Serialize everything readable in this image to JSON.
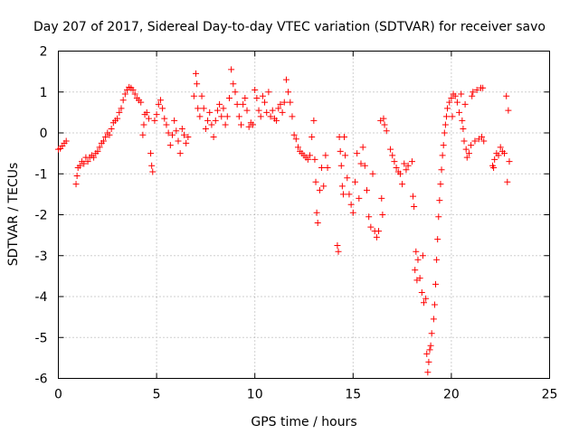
{
  "chart_data": {
    "type": "scatter",
    "title": "Day 207 of 2017, Sidereal Day-to-day VTEC variation (SDTVAR) for receiver savo",
    "xlabel": "GPS time / hours",
    "ylabel": "SDTVAR / TECUs",
    "xlim": [
      0,
      25
    ],
    "ylim": [
      -6,
      2
    ],
    "xticks": [
      0,
      5,
      10,
      15,
      20,
      25
    ],
    "yticks": [
      -6,
      -5,
      -4,
      -3,
      -2,
      -1,
      0,
      1,
      2
    ],
    "grid": true,
    "marker": "+",
    "color": "#ff0000",
    "series": [
      {
        "name": "SDTVAR",
        "points": [
          [
            0.0,
            -0.4
          ],
          [
            0.1,
            -0.38
          ],
          [
            0.2,
            -0.32
          ],
          [
            0.3,
            -0.25
          ],
          [
            0.4,
            -0.2
          ],
          [
            0.9,
            -1.25
          ],
          [
            0.95,
            -1.05
          ],
          [
            1.0,
            -0.85
          ],
          [
            1.1,
            -0.8
          ],
          [
            1.2,
            -0.7
          ],
          [
            1.3,
            -0.75
          ],
          [
            1.4,
            -0.6
          ],
          [
            1.5,
            -0.7
          ],
          [
            1.6,
            -0.6
          ],
          [
            1.7,
            -0.55
          ],
          [
            1.8,
            -0.6
          ],
          [
            1.9,
            -0.5
          ],
          [
            2.0,
            -0.45
          ],
          [
            2.1,
            -0.35
          ],
          [
            2.2,
            -0.25
          ],
          [
            2.3,
            -0.2
          ],
          [
            2.4,
            -0.1
          ],
          [
            2.5,
            0.0
          ],
          [
            2.6,
            -0.05
          ],
          [
            2.7,
            0.1
          ],
          [
            2.8,
            0.25
          ],
          [
            2.9,
            0.3
          ],
          [
            3.0,
            0.35
          ],
          [
            3.1,
            0.5
          ],
          [
            3.2,
            0.6
          ],
          [
            3.3,
            0.8
          ],
          [
            3.4,
            0.95
          ],
          [
            3.5,
            1.05
          ],
          [
            3.6,
            1.12
          ],
          [
            3.7,
            1.1
          ],
          [
            3.8,
            1.05
          ],
          [
            3.9,
            0.95
          ],
          [
            4.0,
            0.85
          ],
          [
            4.1,
            0.8
          ],
          [
            4.2,
            0.75
          ],
          [
            4.3,
            -0.05
          ],
          [
            4.35,
            0.2
          ],
          [
            4.4,
            0.45
          ],
          [
            4.5,
            0.5
          ],
          [
            4.6,
            0.35
          ],
          [
            4.7,
            -0.5
          ],
          [
            4.75,
            -0.8
          ],
          [
            4.8,
            -0.95
          ],
          [
            4.9,
            0.3
          ],
          [
            5.0,
            0.45
          ],
          [
            5.1,
            0.7
          ],
          [
            5.2,
            0.8
          ],
          [
            5.3,
            0.6
          ],
          [
            5.4,
            0.35
          ],
          [
            5.5,
            0.2
          ],
          [
            5.6,
            0.0
          ],
          [
            5.7,
            -0.3
          ],
          [
            5.8,
            -0.05
          ],
          [
            5.9,
            0.3
          ],
          [
            6.0,
            0.05
          ],
          [
            6.1,
            -0.2
          ],
          [
            6.2,
            -0.5
          ],
          [
            6.3,
            0.1
          ],
          [
            6.4,
            -0.05
          ],
          [
            6.5,
            -0.25
          ],
          [
            6.6,
            -0.1
          ],
          [
            6.9,
            0.9
          ],
          [
            7.0,
            1.45
          ],
          [
            7.05,
            1.2
          ],
          [
            7.1,
            0.6
          ],
          [
            7.2,
            0.4
          ],
          [
            7.3,
            0.9
          ],
          [
            7.4,
            0.6
          ],
          [
            7.5,
            0.1
          ],
          [
            7.6,
            0.3
          ],
          [
            7.7,
            0.5
          ],
          [
            7.8,
            0.2
          ],
          [
            7.9,
            -0.1
          ],
          [
            8.0,
            0.3
          ],
          [
            8.1,
            0.55
          ],
          [
            8.2,
            0.7
          ],
          [
            8.3,
            0.4
          ],
          [
            8.4,
            0.6
          ],
          [
            8.5,
            0.2
          ],
          [
            8.6,
            0.4
          ],
          [
            8.7,
            0.85
          ],
          [
            8.8,
            1.55
          ],
          [
            8.9,
            1.2
          ],
          [
            9.0,
            1.0
          ],
          [
            9.1,
            0.7
          ],
          [
            9.2,
            0.4
          ],
          [
            9.3,
            0.2
          ],
          [
            9.4,
            0.7
          ],
          [
            9.5,
            0.85
          ],
          [
            9.6,
            0.55
          ],
          [
            9.7,
            0.15
          ],
          [
            9.8,
            0.25
          ],
          [
            9.9,
            0.2
          ],
          [
            10.0,
            1.05
          ],
          [
            10.1,
            0.85
          ],
          [
            10.2,
            0.55
          ],
          [
            10.3,
            0.4
          ],
          [
            10.4,
            0.9
          ],
          [
            10.5,
            0.75
          ],
          [
            10.6,
            0.5
          ],
          [
            10.7,
            1.0
          ],
          [
            10.8,
            0.4
          ],
          [
            10.9,
            0.55
          ],
          [
            11.0,
            0.35
          ],
          [
            11.1,
            0.3
          ],
          [
            11.2,
            0.6
          ],
          [
            11.3,
            0.7
          ],
          [
            11.4,
            0.5
          ],
          [
            11.5,
            0.75
          ],
          [
            11.6,
            1.3
          ],
          [
            11.7,
            1.0
          ],
          [
            11.8,
            0.75
          ],
          [
            11.9,
            0.4
          ],
          [
            12.0,
            -0.05
          ],
          [
            12.1,
            -0.15
          ],
          [
            12.2,
            -0.35
          ],
          [
            12.3,
            -0.45
          ],
          [
            12.4,
            -0.5
          ],
          [
            12.5,
            -0.55
          ],
          [
            12.6,
            -0.6
          ],
          [
            12.7,
            -0.65
          ],
          [
            12.8,
            -0.55
          ],
          [
            12.9,
            -0.1
          ],
          [
            13.0,
            0.3
          ],
          [
            13.05,
            -0.65
          ],
          [
            13.1,
            -1.2
          ],
          [
            13.15,
            -1.95
          ],
          [
            13.2,
            -2.2
          ],
          [
            13.3,
            -1.4
          ],
          [
            13.4,
            -0.85
          ],
          [
            13.5,
            -1.3
          ],
          [
            13.6,
            -0.55
          ],
          [
            13.7,
            -0.85
          ],
          [
            14.2,
            -2.75
          ],
          [
            14.25,
            -2.9
          ],
          [
            14.3,
            -0.1
          ],
          [
            14.35,
            -0.45
          ],
          [
            14.4,
            -0.8
          ],
          [
            14.45,
            -1.3
          ],
          [
            14.5,
            -1.5
          ],
          [
            14.55,
            -0.1
          ],
          [
            14.6,
            -0.55
          ],
          [
            14.7,
            -1.1
          ],
          [
            14.8,
            -1.5
          ],
          [
            14.9,
            -1.75
          ],
          [
            15.0,
            -1.95
          ],
          [
            15.1,
            -1.2
          ],
          [
            15.2,
            -0.5
          ],
          [
            15.3,
            -1.6
          ],
          [
            15.4,
            -0.75
          ],
          [
            15.5,
            -0.35
          ],
          [
            15.6,
            -0.8
          ],
          [
            15.7,
            -1.4
          ],
          [
            15.8,
            -2.05
          ],
          [
            15.9,
            -2.3
          ],
          [
            16.0,
            -1.0
          ],
          [
            16.1,
            -2.4
          ],
          [
            16.2,
            -2.55
          ],
          [
            16.3,
            -2.4
          ],
          [
            16.4,
            0.3
          ],
          [
            16.45,
            -1.6
          ],
          [
            16.5,
            -2.0
          ],
          [
            16.55,
            0.35
          ],
          [
            16.6,
            0.2
          ],
          [
            16.7,
            0.05
          ],
          [
            16.9,
            -0.4
          ],
          [
            17.0,
            -0.55
          ],
          [
            17.1,
            -0.7
          ],
          [
            17.2,
            -0.85
          ],
          [
            17.3,
            -0.95
          ],
          [
            17.4,
            -1.0
          ],
          [
            17.5,
            -1.25
          ],
          [
            17.6,
            -0.75
          ],
          [
            17.7,
            -0.9
          ],
          [
            17.8,
            -0.8
          ],
          [
            18.0,
            -0.7
          ],
          [
            18.05,
            -1.55
          ],
          [
            18.1,
            -1.8
          ],
          [
            18.15,
            -3.35
          ],
          [
            18.2,
            -2.9
          ],
          [
            18.25,
            -3.6
          ],
          [
            18.3,
            -3.1
          ],
          [
            18.4,
            -3.55
          ],
          [
            18.5,
            -3.9
          ],
          [
            18.55,
            -3.0
          ],
          [
            18.6,
            -4.15
          ],
          [
            18.7,
            -4.05
          ],
          [
            18.75,
            -5.4
          ],
          [
            18.8,
            -5.85
          ],
          [
            18.85,
            -5.6
          ],
          [
            18.9,
            -5.3
          ],
          [
            18.95,
            -5.2
          ],
          [
            19.0,
            -4.9
          ],
          [
            19.1,
            -4.55
          ],
          [
            19.15,
            -4.2
          ],
          [
            19.2,
            -3.7
          ],
          [
            19.25,
            -3.1
          ],
          [
            19.3,
            -2.6
          ],
          [
            19.35,
            -2.05
          ],
          [
            19.4,
            -1.65
          ],
          [
            19.45,
            -1.25
          ],
          [
            19.5,
            -0.9
          ],
          [
            19.55,
            -0.55
          ],
          [
            19.6,
            -0.3
          ],
          [
            19.65,
            0.0
          ],
          [
            19.7,
            0.2
          ],
          [
            19.75,
            0.4
          ],
          [
            19.8,
            0.6
          ],
          [
            19.9,
            0.75
          ],
          [
            20.0,
            0.85
          ],
          [
            20.05,
            0.4
          ],
          [
            20.1,
            0.95
          ],
          [
            20.2,
            0.9
          ],
          [
            20.3,
            0.75
          ],
          [
            20.4,
            0.5
          ],
          [
            20.5,
            0.95
          ],
          [
            20.55,
            0.3
          ],
          [
            20.6,
            0.1
          ],
          [
            20.65,
            -0.2
          ],
          [
            20.7,
            0.7
          ],
          [
            20.75,
            -0.4
          ],
          [
            20.8,
            -0.6
          ],
          [
            20.9,
            -0.5
          ],
          [
            21.0,
            -0.3
          ],
          [
            21.05,
            0.9
          ],
          [
            21.1,
            1.0
          ],
          [
            21.2,
            -0.2
          ],
          [
            21.3,
            1.05
          ],
          [
            21.4,
            -0.15
          ],
          [
            21.5,
            1.1
          ],
          [
            21.55,
            -0.1
          ],
          [
            21.6,
            1.1
          ],
          [
            21.65,
            -0.2
          ],
          [
            22.1,
            -0.8
          ],
          [
            22.15,
            -0.85
          ],
          [
            22.2,
            -0.65
          ],
          [
            22.3,
            -0.5
          ],
          [
            22.4,
            -0.55
          ],
          [
            22.5,
            -0.35
          ],
          [
            22.6,
            -0.45
          ],
          [
            22.7,
            -0.5
          ],
          [
            22.8,
            0.9
          ],
          [
            22.85,
            -1.2
          ],
          [
            22.9,
            0.55
          ],
          [
            22.95,
            -0.7
          ]
        ]
      }
    ]
  }
}
